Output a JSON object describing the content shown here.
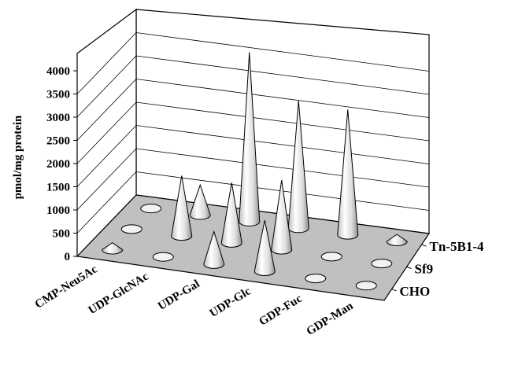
{
  "chart_data": {
    "type": "3d-cone",
    "title": "",
    "ylabel": "pmol/mg protein",
    "ylim": [
      0,
      4000
    ],
    "yticks": [
      0,
      500,
      1000,
      1500,
      2000,
      2500,
      3000,
      3500,
      4000
    ],
    "ytick_labels": [
      "0",
      "500",
      "1000",
      "1500",
      "2000",
      "2500",
      "3000",
      "3500",
      "4000"
    ],
    "categories": [
      "CMP-Neu5Ac",
      "UDP-GlcNAc",
      "UDP-Gal",
      "UDP-Glc",
      "GDP-Fuc",
      "GDP-Man"
    ],
    "series": [
      {
        "name": "CHO",
        "values": [
          150,
          0,
          700,
          1100,
          0,
          0
        ]
      },
      {
        "name": "Sf9",
        "values": [
          0,
          1300,
          1300,
          1500,
          0,
          0
        ]
      },
      {
        "name": "Tn-5B1-4",
        "values": [
          0,
          650,
          3650,
          2750,
          2700,
          150
        ]
      }
    ],
    "floor_color": "#c0c0c0",
    "cone_color": "#e8e8e8"
  }
}
